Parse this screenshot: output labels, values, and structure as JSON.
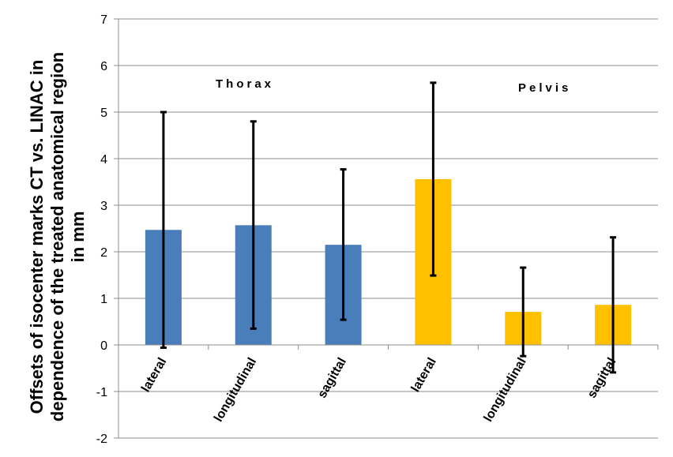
{
  "chart_data": {
    "type": "bar",
    "ylabel": [
      "Offsets of isocenter marks CT vs. LINAC in",
      "dependence of the treated anatomical region",
      "in mm"
    ],
    "ylim": [
      -2,
      7
    ],
    "yticks": [
      -2,
      -1,
      0,
      1,
      2,
      3,
      4,
      5,
      6,
      7
    ],
    "grid": "horizontal",
    "categories": [
      "lateral",
      "longitudinal",
      "sagittal",
      "lateral",
      "longitudinal",
      "sagittal"
    ],
    "values": [
      2.47,
      2.57,
      2.15,
      3.56,
      0.71,
      0.86
    ],
    "error_high": [
      5.0,
      4.8,
      3.77,
      5.63,
      1.66,
      2.31
    ],
    "error_low": [
      -0.06,
      0.35,
      0.54,
      1.49,
      -0.24,
      -0.59
    ],
    "groups": [
      {
        "label": "Thorax",
        "color": "#4a7ebb",
        "indices": [
          0,
          1,
          2
        ]
      },
      {
        "label": "Pelvis",
        "color": "#ffc000",
        "indices": [
          3,
          4,
          5
        ]
      }
    ],
    "annotations": [
      "Thorax",
      "Pelvis"
    ]
  }
}
